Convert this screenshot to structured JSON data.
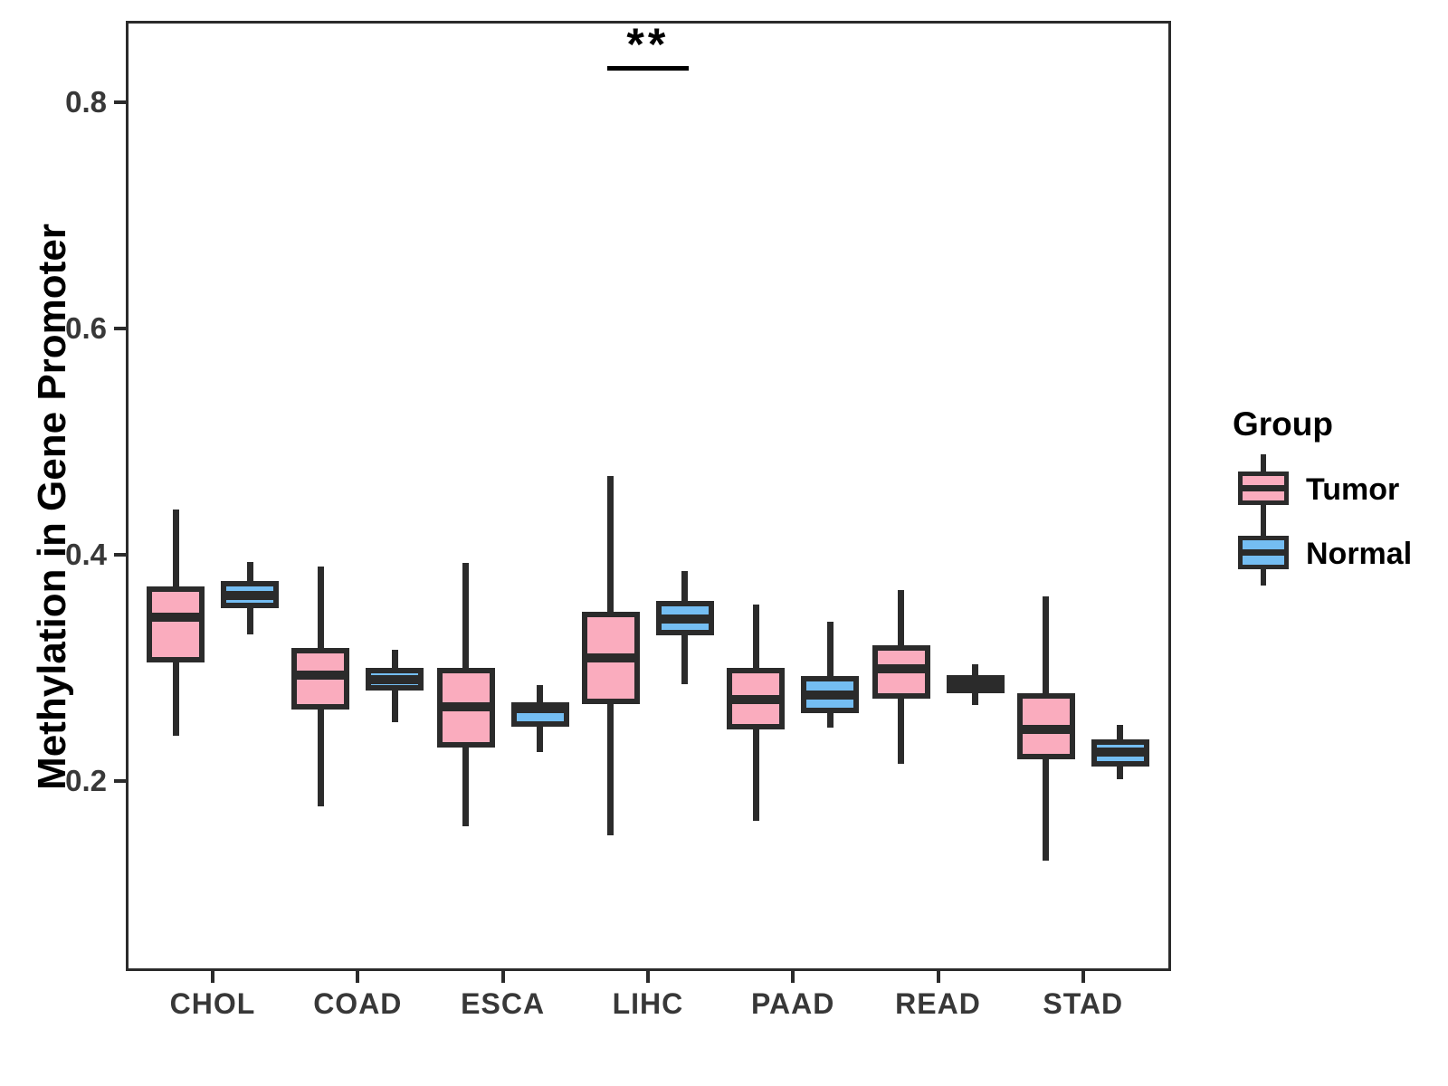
{
  "chart_data": {
    "type": "grouped_boxplot",
    "title": "",
    "xlabel": "",
    "ylabel": "Methylation in Gene Promoter",
    "ylim": [
      0.032,
      0.872
    ],
    "yticks": [
      {
        "label": "0.2",
        "value": 0.2
      },
      {
        "label": "0.4",
        "value": 0.4
      },
      {
        "label": "0.6",
        "value": 0.6
      },
      {
        "label": "0.8",
        "value": 0.8
      }
    ],
    "grid": "off",
    "categories": [
      "CHOL",
      "COAD",
      "ESCA",
      "LIHC",
      "PAAD",
      "READ",
      "STAD"
    ],
    "groups": [
      {
        "name": "Tumor",
        "fill": "#FAACBE"
      },
      {
        "name": "Normal",
        "fill": "#74BDF2"
      }
    ],
    "stroke_color": "#2B2B2B",
    "series": [
      {
        "group": "Tumor",
        "boxes": [
          {
            "category": "CHOL",
            "whisker_low": 0.24,
            "q1": 0.305,
            "median": 0.345,
            "q3": 0.372,
            "whisker_high": 0.44
          },
          {
            "category": "COAD",
            "whisker_low": 0.178,
            "q1": 0.263,
            "median": 0.294,
            "q3": 0.318,
            "whisker_high": 0.39
          },
          {
            "category": "ESCA",
            "whisker_low": 0.16,
            "q1": 0.23,
            "median": 0.266,
            "q3": 0.3,
            "whisker_high": 0.393
          },
          {
            "category": "LIHC",
            "whisker_low": 0.152,
            "q1": 0.268,
            "median": 0.309,
            "q3": 0.35,
            "whisker_high": 0.47
          },
          {
            "category": "PAAD",
            "whisker_low": 0.165,
            "q1": 0.246,
            "median": 0.272,
            "q3": 0.3,
            "whisker_high": 0.356
          },
          {
            "category": "READ",
            "whisker_low": 0.215,
            "q1": 0.273,
            "median": 0.299,
            "q3": 0.32,
            "whisker_high": 0.369
          },
          {
            "category": "STAD",
            "whisker_low": 0.13,
            "q1": 0.219,
            "median": 0.246,
            "q3": 0.278,
            "whisker_high": 0.363
          }
        ]
      },
      {
        "group": "Normal",
        "boxes": [
          {
            "category": "CHOL",
            "whisker_low": 0.33,
            "q1": 0.353,
            "median": 0.364,
            "q3": 0.377,
            "whisker_high": 0.394
          },
          {
            "category": "COAD",
            "whisker_low": 0.252,
            "q1": 0.28,
            "median": 0.29,
            "q3": 0.3,
            "whisker_high": 0.316
          },
          {
            "category": "ESCA",
            "whisker_low": 0.226,
            "q1": 0.248,
            "median": 0.264,
            "q3": 0.27,
            "whisker_high": 0.285
          },
          {
            "category": "LIHC",
            "whisker_low": 0.286,
            "q1": 0.329,
            "median": 0.343,
            "q3": 0.359,
            "whisker_high": 0.386
          },
          {
            "category": "PAAD",
            "whisker_low": 0.247,
            "q1": 0.26,
            "median": 0.276,
            "q3": 0.293,
            "whisker_high": 0.341
          },
          {
            "category": "READ",
            "whisker_low": 0.267,
            "q1": 0.278,
            "median": 0.286,
            "q3": 0.294,
            "whisker_high": 0.303
          },
          {
            "category": "STAD",
            "whisker_low": 0.202,
            "q1": 0.213,
            "median": 0.226,
            "q3": 0.237,
            "whisker_high": 0.25
          }
        ]
      }
    ],
    "annotations": [
      {
        "type": "significance_bar",
        "category": "LIHC",
        "label": "**",
        "bar_value": 0.83
      }
    ],
    "legend": {
      "title": "Group",
      "position": "right"
    }
  }
}
